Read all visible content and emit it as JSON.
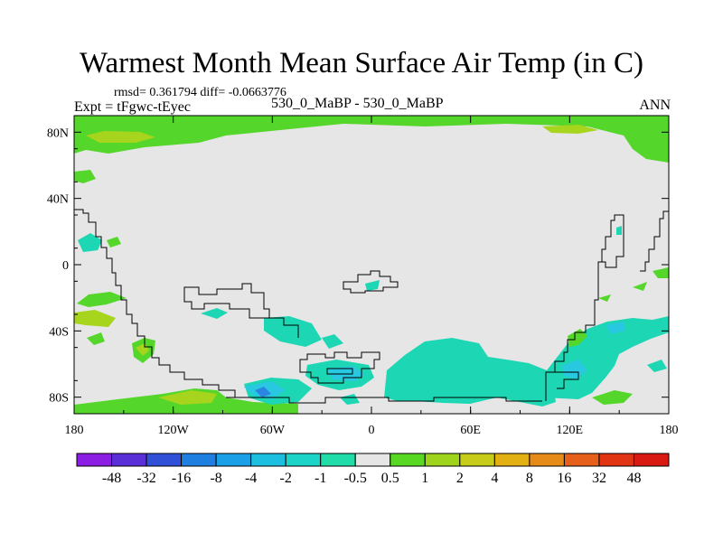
{
  "title": "Warmest Month Mean Surface Air Temp (in C)",
  "stats": "rmsd= 0.361794 diff= -0.0663776",
  "experiment": "Expt = tFgwc-tEyec",
  "subtitle": "530_0_MaBP - 530_0_MaBP",
  "period": "ANN",
  "y_ticks": [
    "80N",
    "40N",
    "0",
    "40S",
    "80S"
  ],
  "x_ticks": [
    "180",
    "120W",
    "60W",
    "0",
    "60E",
    "120E",
    "180"
  ],
  "colorbar": {
    "labels": [
      "-48",
      "-32",
      "-16",
      "-8",
      "-4",
      "-2",
      "-1",
      "-0.5",
      "0.5",
      "1",
      "2",
      "4",
      "8",
      "16",
      "32",
      "48"
    ],
    "colors": [
      "#8c1de2",
      "#5b2fd8",
      "#3050d8",
      "#1f7fe0",
      "#1aa0e6",
      "#1cbfe0",
      "#1cd4c8",
      "#20dca8",
      "#e6e6e6",
      "#58d823",
      "#9fd41d",
      "#c6cc18",
      "#e2b012",
      "#e68a18",
      "#e6601c",
      "#e03412",
      "#d81a12"
    ]
  },
  "colors": {
    "background": "#e6e6e6",
    "green": "#55d62a",
    "yellow_green": "#a7d41c",
    "teal": "#1dd6b4",
    "cyan": "#28c8e0",
    "blue": "#2a86e0"
  }
}
